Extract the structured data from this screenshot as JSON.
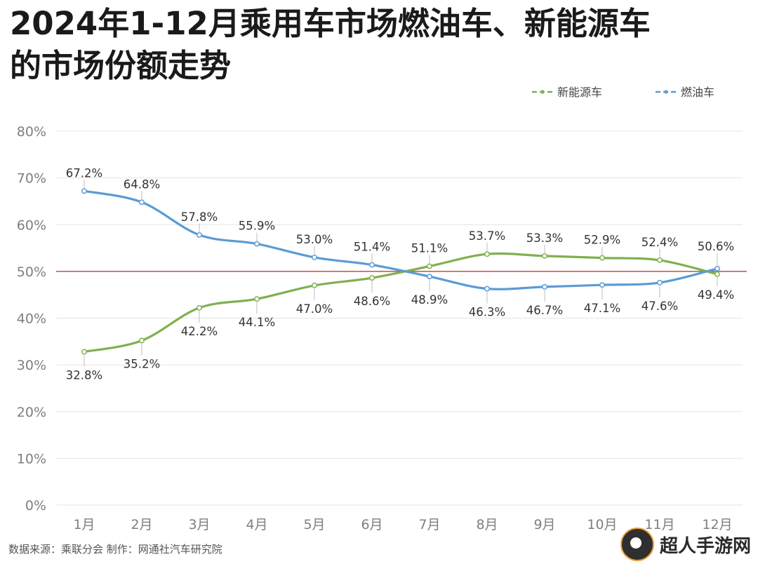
{
  "title_line1": "2024年1-12月乘用车市场燃油车、新能源车",
  "title_line2": "的市场份额走势",
  "source": "数据来源：乘联分会  制作：网通社汽车研究院",
  "watermark": "超人手游网",
  "colors": {
    "nev": "#7fb04f",
    "fuel": "#5b9bd5",
    "reference": "#c0504d",
    "grid": "#e4e4e4",
    "axis_text": "#7f7f7f"
  },
  "chart_data": {
    "type": "line",
    "categories": [
      "1月",
      "2月",
      "3月",
      "4月",
      "5月",
      "6月",
      "7月",
      "8月",
      "9月",
      "10月",
      "11月",
      "12月"
    ],
    "series": [
      {
        "name": "新能源车",
        "values": [
          32.8,
          35.2,
          42.2,
          44.1,
          47.0,
          48.6,
          51.1,
          53.7,
          53.3,
          52.9,
          52.4,
          49.4
        ],
        "labels": [
          "32.8%",
          "35.2%",
          "42.2%",
          "44.1%",
          "47.0%",
          "48.6%",
          "51.1%",
          "53.7%",
          "53.3%",
          "52.9%",
          "52.4%",
          "49.4%"
        ]
      },
      {
        "name": "燃油车",
        "values": [
          67.2,
          64.8,
          57.8,
          55.9,
          53.0,
          51.4,
          48.9,
          46.3,
          46.7,
          47.1,
          47.6,
          50.6
        ],
        "labels": [
          "67.2%",
          "64.8%",
          "57.8%",
          "55.9%",
          "53.0%",
          "51.4%",
          "48.9%",
          "46.3%",
          "46.7%",
          "47.1%",
          "47.6%",
          "50.6%"
        ]
      }
    ],
    "y_ticks": [
      "0%",
      "10%",
      "20%",
      "30%",
      "40%",
      "50%",
      "60%",
      "70%",
      "80%"
    ],
    "ylim": [
      0,
      80
    ],
    "reference_line": 50,
    "grid": true,
    "legend_position": "top-right"
  }
}
